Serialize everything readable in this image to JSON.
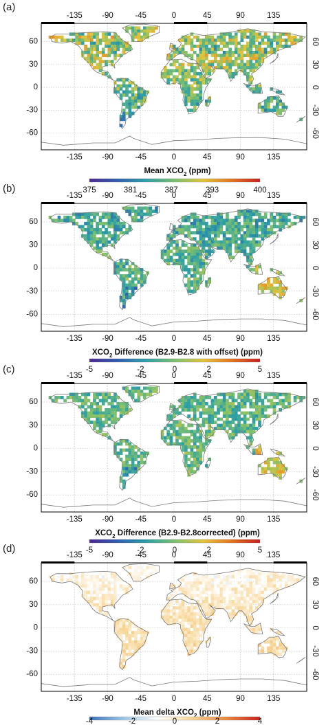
{
  "chart_data": [
    {
      "type": "heatmap",
      "panel_label": "(a)",
      "lon_ticks": [
        "-135",
        "-90",
        "-45",
        "0",
        "45",
        "90",
        "135"
      ],
      "lat_ticks": [
        "60",
        "30",
        "0",
        "-30",
        "-60"
      ],
      "colorbar": {
        "title_pre": "Mean XCO",
        "title_sub": "2",
        "title_post": "  (ppm)",
        "ticks": [
          "375",
          "381",
          "387",
          "393",
          "400"
        ],
        "range": [
          375,
          400
        ],
        "palette": [
          "#4b2991",
          "#2f5fb0",
          "#2ea0a6",
          "#7cc06f",
          "#e3c53a",
          "#e4751f",
          "#c81f1f"
        ]
      },
      "field": {
        "scheme": "concentration",
        "baseline": 0.48,
        "north_hi": 0.2,
        "spread": 0.18
      }
    },
    {
      "type": "heatmap",
      "panel_label": "(b)",
      "lon_ticks": [
        "-135",
        "-90",
        "-45",
        "0",
        "45",
        "90",
        "135"
      ],
      "lat_ticks": [
        "60",
        "30",
        "0",
        "-30",
        "-60"
      ],
      "colorbar": {
        "title_pre": "XCO",
        "title_sub": "2",
        "title_post": " Difference (B2.9-B2.8 with offset)  (ppm)",
        "ticks": [
          "-5",
          "-2",
          "0",
          "2",
          "5"
        ],
        "range": [
          -5,
          5
        ],
        "palette": [
          "#4b2991",
          "#2f5fb0",
          "#2ea0a6",
          "#7cc06f",
          "#e3c53a",
          "#e4751f",
          "#c81f1f"
        ]
      },
      "field": {
        "scheme": "difference",
        "baseline": 0.42,
        "north_hi": -0.06,
        "spread": 0.14
      }
    },
    {
      "type": "heatmap",
      "panel_label": "(c)",
      "lon_ticks": [
        "-135",
        "-90",
        "-45",
        "0",
        "45",
        "90",
        "135"
      ],
      "lat_ticks": [
        "60",
        "30",
        "0",
        "-30",
        "-60"
      ],
      "colorbar": {
        "title_pre": "XCO",
        "title_sub": "2",
        "title_post": " Difference (B2.9-B2.8corrected)  (ppm)",
        "ticks": [
          "-5",
          "-2",
          "0",
          "2",
          "5"
        ],
        "range": [
          -5,
          5
        ],
        "palette": [
          "#4b2991",
          "#2f5fb0",
          "#2ea0a6",
          "#7cc06f",
          "#e3c53a",
          "#e4751f",
          "#c81f1f"
        ]
      },
      "field": {
        "scheme": "difference",
        "baseline": 0.45,
        "north_hi": -0.02,
        "spread": 0.13
      }
    },
    {
      "type": "heatmap",
      "panel_label": "(d)",
      "lon_ticks": [
        "-135",
        "-90",
        "-45",
        "0",
        "45",
        "90",
        "135"
      ],
      "lat_ticks": [
        "60",
        "30",
        "0",
        "-30",
        "-60"
      ],
      "colorbar": {
        "title_pre": "Mean delta XCO",
        "title_sub": "2",
        "title_post": "  (ppm)",
        "ticks": [
          "-4",
          "-2",
          "0",
          "2",
          "4"
        ],
        "range": [
          -4,
          4
        ],
        "palette": [
          "#3b6fb6",
          "#9ec7e6",
          "#ffffff",
          "#f7d79a",
          "#ef8a3d",
          "#c81f1f"
        ]
      },
      "field": {
        "scheme": "diverging",
        "baseline": 0.55,
        "north_hi": -0.05,
        "spread": 0.07
      }
    }
  ]
}
